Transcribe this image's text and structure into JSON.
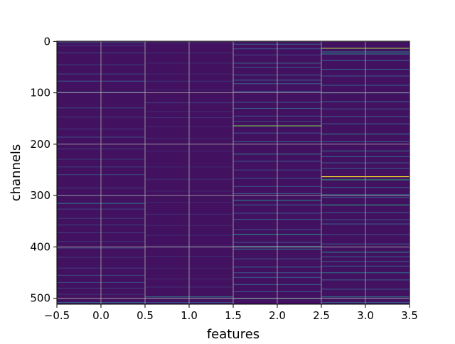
{
  "chart_data": {
    "type": "heatmap",
    "title": "",
    "xlabel": "features",
    "ylabel": "channels",
    "xlim": [
      -0.5,
      3.5
    ],
    "ylim": [
      511.5,
      -0.5
    ],
    "n_rows": 512,
    "columns": [
      0,
      1,
      2,
      3
    ],
    "xticks": [
      "−0.5",
      "0.0",
      "0.5",
      "1.0",
      "1.5",
      "2.0",
      "2.5",
      "3.0",
      "3.5"
    ],
    "xtick_values": [
      -0.5,
      0.0,
      0.5,
      1.0,
      1.5,
      2.0,
      2.5,
      3.0,
      3.5
    ],
    "yticks": [
      "0",
      "100",
      "200",
      "300",
      "400",
      "500"
    ],
    "ytick_values": [
      0,
      100,
      200,
      300,
      400,
      500
    ],
    "grid": true,
    "colormap": "viridis",
    "background_value": 0.05,
    "approx_column_cells": [
      {
        "column": 0,
        "cells": [
          [
            2,
            0.22
          ],
          [
            8,
            0.18
          ],
          [
            22,
            0.2
          ],
          [
            45,
            0.18
          ],
          [
            63,
            0.2
          ],
          [
            77,
            0.25
          ],
          [
            98,
            0.18
          ],
          [
            129,
            0.2
          ],
          [
            147,
            0.16
          ],
          [
            170,
            0.18
          ],
          [
            186,
            0.22
          ],
          [
            209,
            0.18
          ],
          [
            229,
            0.16
          ],
          [
            244,
            0.18
          ],
          [
            259,
            0.2
          ],
          [
            285,
            0.18
          ],
          [
            300,
            0.16
          ],
          [
            315,
            0.35
          ],
          [
            326,
            0.2
          ],
          [
            344,
            0.18
          ],
          [
            357,
            0.2
          ],
          [
            372,
            0.18
          ],
          [
            389,
            0.16
          ],
          [
            402,
            0.2
          ],
          [
            420,
            0.16
          ],
          [
            441,
            0.18
          ],
          [
            455,
            0.22
          ],
          [
            469,
            0.2
          ],
          [
            480,
            0.18
          ],
          [
            492,
            0.16
          ],
          [
            508,
            0.35
          ]
        ]
      },
      {
        "column": 1,
        "cells": [
          [
            3,
            0.12
          ],
          [
            22,
            0.14
          ],
          [
            42,
            0.12
          ],
          [
            63,
            0.12
          ],
          [
            77,
            0.16
          ],
          [
            94,
            0.12
          ],
          [
            119,
            0.18
          ],
          [
            136,
            0.12
          ],
          [
            148,
            0.14
          ],
          [
            166,
            0.12
          ],
          [
            189,
            0.14
          ],
          [
            213,
            0.12
          ],
          [
            244,
            0.12
          ],
          [
            268,
            0.14
          ],
          [
            291,
            0.12
          ],
          [
            313,
            0.12
          ],
          [
            336,
            0.14
          ],
          [
            358,
            0.12
          ],
          [
            377,
            0.14
          ],
          [
            398,
            0.12
          ],
          [
            418,
            0.14
          ],
          [
            441,
            0.12
          ],
          [
            462,
            0.12
          ],
          [
            478,
            0.14
          ],
          [
            497,
            0.4
          ],
          [
            508,
            0.25
          ]
        ]
      },
      {
        "column": 2,
        "cells": [
          [
            5,
            0.3
          ],
          [
            14,
            0.25
          ],
          [
            26,
            0.22
          ],
          [
            42,
            0.3
          ],
          [
            50,
            0.25
          ],
          [
            65,
            0.28
          ],
          [
            75,
            0.35
          ],
          [
            82,
            0.3
          ],
          [
            97,
            0.25
          ],
          [
            118,
            0.28
          ],
          [
            130,
            0.3
          ],
          [
            145,
            0.25
          ],
          [
            155,
            0.22
          ],
          [
            164,
            0.8
          ],
          [
            178,
            0.25
          ],
          [
            195,
            0.3
          ],
          [
            219,
            0.35
          ],
          [
            233,
            0.25
          ],
          [
            250,
            0.22
          ],
          [
            266,
            0.25
          ],
          [
            282,
            0.22
          ],
          [
            296,
            0.28
          ],
          [
            309,
            0.45
          ],
          [
            318,
            0.3
          ],
          [
            334,
            0.25
          ],
          [
            346,
            0.28
          ],
          [
            366,
            0.25
          ],
          [
            375,
            0.5
          ],
          [
            391,
            0.25
          ],
          [
            399,
            0.5
          ],
          [
            404,
            0.4
          ],
          [
            423,
            0.25
          ],
          [
            439,
            0.3
          ],
          [
            450,
            0.25
          ],
          [
            459,
            0.28
          ],
          [
            473,
            0.3
          ],
          [
            487,
            0.25
          ],
          [
            500,
            0.45
          ]
        ]
      },
      {
        "column": 3,
        "cells": [
          [
            13,
            0.85
          ],
          [
            20,
            0.4
          ],
          [
            24,
            0.45
          ],
          [
            37,
            0.3
          ],
          [
            54,
            0.3
          ],
          [
            67,
            0.25
          ],
          [
            85,
            0.3
          ],
          [
            100,
            0.28
          ],
          [
            117,
            0.3
          ],
          [
            131,
            0.25
          ],
          [
            146,
            0.3
          ],
          [
            160,
            0.28
          ],
          [
            180,
            0.4
          ],
          [
            195,
            0.3
          ],
          [
            213,
            0.35
          ],
          [
            224,
            0.3
          ],
          [
            236,
            0.28
          ],
          [
            247,
            0.3
          ],
          [
            263,
            1.0
          ],
          [
            269,
            0.55
          ],
          [
            284,
            0.3
          ],
          [
            298,
            0.35
          ],
          [
            303,
            0.3
          ],
          [
            318,
            0.55
          ],
          [
            333,
            0.3
          ],
          [
            347,
            0.28
          ],
          [
            355,
            0.3
          ],
          [
            376,
            0.25
          ],
          [
            394,
            0.3
          ],
          [
            410,
            0.45
          ],
          [
            419,
            0.3
          ],
          [
            428,
            0.28
          ],
          [
            437,
            0.3
          ],
          [
            450,
            0.35
          ],
          [
            464,
            0.3
          ],
          [
            482,
            0.28
          ],
          [
            497,
            0.4
          ],
          [
            508,
            0.3
          ]
        ]
      }
    ]
  }
}
